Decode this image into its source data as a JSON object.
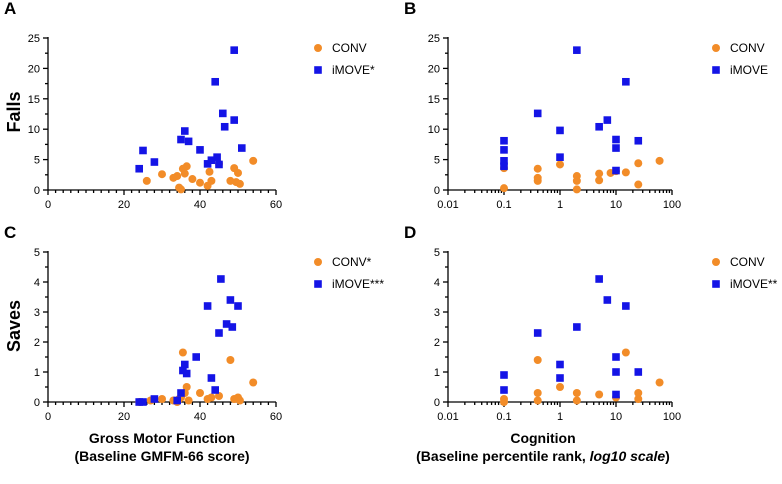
{
  "colors": {
    "conv": "#F28C28",
    "imove": "#1414E6"
  },
  "row_labels": [
    "Falls",
    "Saves"
  ],
  "xlabels": {
    "gross_line1": "Gross Motor Function",
    "gross_line2": "(Baseline GMFM-66 score)",
    "cog_line1": "Cognition",
    "cog_line2a": "(Baseline percentile rank,",
    "cog_line2b": "log10 scale",
    "cog_line2c": ")"
  },
  "chart_data": [
    {
      "panel": "A",
      "type": "scatter",
      "xscale": "linear",
      "xlim": [
        0,
        60
      ],
      "ylim": [
        0,
        25
      ],
      "xticks": [
        0,
        20,
        40,
        60
      ],
      "yticks": [
        0,
        5,
        10,
        15,
        20,
        25
      ],
      "xlabel": "",
      "ylabel": "Falls",
      "series": [
        {
          "name": "CONV",
          "marker": "circle",
          "points": [
            [
              26,
              1.5
            ],
            [
              30,
              2.6
            ],
            [
              33,
              2.0
            ],
            [
              34,
              2.3
            ],
            [
              34.5,
              0.4
            ],
            [
              35,
              0.1
            ],
            [
              35.5,
              3.5
            ],
            [
              36,
              2.7
            ],
            [
              36.5,
              3.9
            ],
            [
              38,
              1.8
            ],
            [
              40,
              1.2
            ],
            [
              42,
              0.7
            ],
            [
              42.5,
              3.0
            ],
            [
              43,
              1.5
            ],
            [
              45,
              4.3
            ],
            [
              48,
              1.5
            ],
            [
              49,
              3.6
            ],
            [
              49.5,
              1.3
            ],
            [
              50,
              2.8
            ],
            [
              50.5,
              1.0
            ],
            [
              54,
              4.8
            ]
          ]
        },
        {
          "name": "iMOVE*",
          "marker": "square",
          "points": [
            [
              24,
              3.5
            ],
            [
              25,
              6.5
            ],
            [
              28,
              4.6
            ],
            [
              35,
              8.3
            ],
            [
              36,
              9.7
            ],
            [
              37,
              8.0
            ],
            [
              40,
              6.6
            ],
            [
              42,
              4.3
            ],
            [
              43,
              4.9
            ],
            [
              44,
              17.8
            ],
            [
              44.5,
              5.4
            ],
            [
              45,
              4.2
            ],
            [
              46,
              12.6
            ],
            [
              46.5,
              10.4
            ],
            [
              49,
              11.5
            ],
            [
              49,
              23
            ],
            [
              51,
              6.9
            ]
          ]
        }
      ]
    },
    {
      "panel": "B",
      "type": "scatter",
      "xscale": "log10",
      "xlim": [
        0.01,
        100
      ],
      "ylim": [
        0,
        25
      ],
      "xticks": [
        0.01,
        0.1,
        1,
        10,
        100
      ],
      "xticklabels": [
        "0.01",
        "0.1",
        "1",
        "10",
        "100"
      ],
      "yticks": [
        0,
        5,
        10,
        15,
        20,
        25
      ],
      "xlabel": "",
      "ylabel": "",
      "series": [
        {
          "name": "CONV",
          "marker": "circle",
          "points": [
            [
              0.1,
              0.3
            ],
            [
              0.1,
              3.6
            ],
            [
              0.4,
              1.5
            ],
            [
              0.4,
              2.0
            ],
            [
              0.4,
              3.5
            ],
            [
              1,
              4.2
            ],
            [
              2,
              0.1
            ],
            [
              2,
              1.5
            ],
            [
              2,
              2.3
            ],
            [
              5,
              1.6
            ],
            [
              5,
              2.7
            ],
            [
              8,
              2.8
            ],
            [
              10,
              3.1
            ],
            [
              15,
              2.9
            ],
            [
              25,
              0.9
            ],
            [
              25,
              4.4
            ],
            [
              60,
              4.8
            ]
          ]
        },
        {
          "name": "iMOVE",
          "marker": "square",
          "points": [
            [
              0.1,
              3.9
            ],
            [
              0.1,
              4.8
            ],
            [
              0.1,
              6.6
            ],
            [
              0.1,
              8.1
            ],
            [
              0.4,
              12.6
            ],
            [
              1,
              5.4
            ],
            [
              1,
              9.8
            ],
            [
              2,
              23
            ],
            [
              5,
              10.4
            ],
            [
              7,
              11.5
            ],
            [
              10,
              3.2
            ],
            [
              10,
              6.9
            ],
            [
              10,
              8.3
            ],
            [
              15,
              17.8
            ],
            [
              25,
              8.1
            ]
          ]
        }
      ]
    },
    {
      "panel": "C",
      "type": "scatter",
      "xscale": "linear",
      "xlim": [
        0,
        60
      ],
      "ylim": [
        0,
        5
      ],
      "xticks": [
        0,
        20,
        40,
        60
      ],
      "yticks": [
        0,
        1,
        2,
        3,
        4,
        5
      ],
      "xlabel": "Gross Motor Function (Baseline GMFM-66 score)",
      "ylabel": "Saves",
      "series": [
        {
          "name": "CONV*",
          "marker": "circle",
          "points": [
            [
              24,
              0.0
            ],
            [
              27,
              0.05
            ],
            [
              30,
              0.1
            ],
            [
              33,
              0.05
            ],
            [
              34,
              0.0
            ],
            [
              34.5,
              0.1
            ],
            [
              35,
              0.15
            ],
            [
              35.5,
              1.65
            ],
            [
              36,
              0.3
            ],
            [
              36.5,
              0.5
            ],
            [
              37,
              0.05
            ],
            [
              40,
              0.3
            ],
            [
              42,
              0.1
            ],
            [
              43,
              0.15
            ],
            [
              45,
              0.2
            ],
            [
              48,
              1.4
            ],
            [
              49,
              0.1
            ],
            [
              50,
              0.15
            ],
            [
              50.5,
              0.05
            ],
            [
              54,
              0.65
            ]
          ]
        },
        {
          "name": "iMOVE***",
          "marker": "square",
          "points": [
            [
              24,
              0.0
            ],
            [
              25,
              0.0
            ],
            [
              28,
              0.1
            ],
            [
              34,
              0.05
            ],
            [
              35,
              0.3
            ],
            [
              35.5,
              1.05
            ],
            [
              36,
              1.25
            ],
            [
              36.5,
              0.95
            ],
            [
              39,
              1.5
            ],
            [
              42,
              3.2
            ],
            [
              43,
              0.8
            ],
            [
              44,
              0.4
            ],
            [
              45,
              2.3
            ],
            [
              45.5,
              4.1
            ],
            [
              47,
              2.6
            ],
            [
              48,
              3.4
            ],
            [
              48.5,
              2.5
            ],
            [
              50,
              3.2
            ]
          ]
        }
      ]
    },
    {
      "panel": "D",
      "type": "scatter",
      "xscale": "log10",
      "xlim": [
        0.01,
        100
      ],
      "ylim": [
        0,
        5
      ],
      "xticks": [
        0.01,
        0.1,
        1,
        10,
        100
      ],
      "xticklabels": [
        "0.01",
        "0.1",
        "1",
        "10",
        "100"
      ],
      "yticks": [
        0,
        1,
        2,
        3,
        4,
        5
      ],
      "xlabel": "Cognition (Baseline percentile rank, log10 scale)",
      "ylabel": "",
      "series": [
        {
          "name": "CONV",
          "marker": "circle",
          "points": [
            [
              0.1,
              0.0
            ],
            [
              0.1,
              0.1
            ],
            [
              0.4,
              0.05
            ],
            [
              0.4,
              0.3
            ],
            [
              0.4,
              1.4
            ],
            [
              1,
              0.5
            ],
            [
              2,
              0.05
            ],
            [
              2,
              0.3
            ],
            [
              5,
              0.25
            ],
            [
              10,
              0.15
            ],
            [
              15,
              1.65
            ],
            [
              25,
              0.1
            ],
            [
              25,
              0.3
            ],
            [
              60,
              0.65
            ]
          ]
        },
        {
          "name": "iMOVE**",
          "marker": "square",
          "points": [
            [
              0.1,
              0.4
            ],
            [
              0.1,
              0.9
            ],
            [
              0.4,
              2.3
            ],
            [
              1,
              0.8
            ],
            [
              1,
              1.25
            ],
            [
              2,
              2.5
            ],
            [
              5,
              4.1
            ],
            [
              7,
              3.4
            ],
            [
              10,
              0.25
            ],
            [
              10,
              1.0
            ],
            [
              10,
              1.5
            ],
            [
              15,
              3.2
            ],
            [
              25,
              1.0
            ]
          ]
        }
      ]
    }
  ]
}
